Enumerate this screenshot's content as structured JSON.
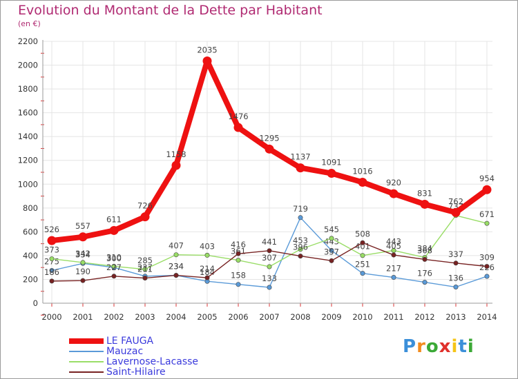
{
  "header": {
    "title": "Evolution du Montant de la Dette par Habitant",
    "unit": "(en €)"
  },
  "chart_data": {
    "type": "line",
    "title": "Evolution du Montant de la Dette par Habitant",
    "subtitle": "(en €)",
    "x": [
      "2000",
      "2001",
      "2002",
      "2003",
      "2004",
      "2005",
      "2006",
      "2007",
      "2008",
      "2009",
      "2010",
      "2011",
      "2012",
      "2013",
      "2014"
    ],
    "ylim": [
      0,
      2200
    ],
    "yticks": [
      "0",
      "200",
      "400",
      "600",
      "800",
      "1000",
      "1200",
      "1400",
      "1600",
      "1800",
      "2000",
      "2200"
    ],
    "grid": true,
    "legend_position": "bottom-left",
    "series": [
      {
        "name": "LE FAUGA",
        "color": "#ee1111",
        "values": [
          526,
          557,
          611,
          726,
          1158,
          2035,
          1476,
          1295,
          1137,
          1091,
          1016,
          920,
          831,
          762,
          954
        ]
      },
      {
        "name": "Mauzac",
        "color": "#5a9ad8",
        "values": [
          275,
          334,
          300,
          227,
          234,
          184,
          158,
          133,
          719,
          443,
          251,
          217,
          176,
          136,
          226
        ]
      },
      {
        "name": "Lavernose-Lacasse",
        "color": "#99dd66",
        "values": [
          373,
          342,
          310,
          285,
          407,
          403,
          361,
          307,
          453,
          545,
          401,
          443,
          384,
          737,
          671
        ]
      },
      {
        "name": "Saint-Hilaire",
        "color": "#772222",
        "values": [
          186,
          190,
          227,
          211,
          234,
          214,
          416,
          441,
          396,
          357,
          508,
          405,
          368,
          337,
          309
        ]
      }
    ]
  },
  "logo": {
    "letters": [
      "P",
      "r",
      "o",
      "x",
      "i",
      "t",
      "i"
    ],
    "colors": [
      "#3b8fd9",
      "#f28c1e",
      "#3ba936",
      "#e0312c",
      "#f5c518",
      "#3b8fd9",
      "#3ba936"
    ]
  }
}
